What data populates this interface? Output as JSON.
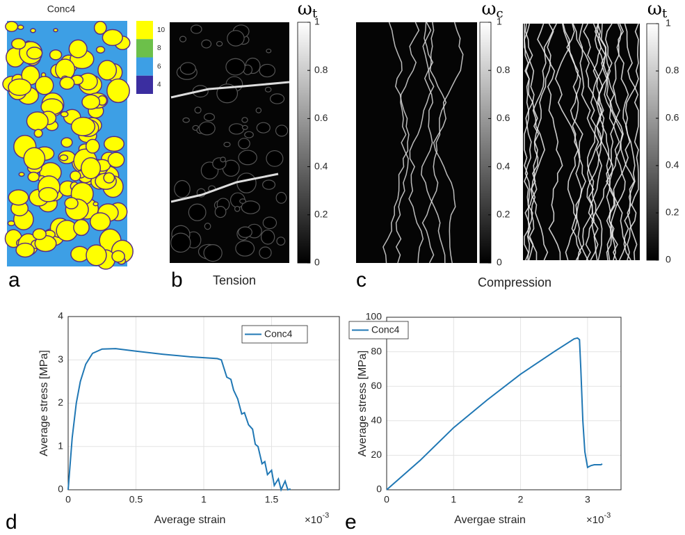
{
  "panels": {
    "a": {
      "letter": "a",
      "title": "Conc4"
    },
    "b": {
      "letter": "b",
      "caption": "Tension"
    },
    "c": {
      "letter": "c",
      "caption": "Compression"
    },
    "d": {
      "letter": "d"
    },
    "e": {
      "letter": "e"
    }
  },
  "colorbars": [
    {
      "lim": [
        3,
        11
      ],
      "levels": [
        10,
        8,
        6,
        4
      ],
      "colors": [
        "#ffff00",
        "#6cc04a",
        "#3d9fe5",
        "#3b2ea0"
      ]
    },
    {
      "symbol": "ω",
      "subscript": "t",
      "lim": [
        0,
        1
      ],
      "ticks": [
        0,
        0.2,
        0.4,
        0.6,
        0.8,
        1
      ]
    },
    {
      "symbol": "ω",
      "subscript": "c",
      "lim": [
        0,
        1
      ],
      "ticks": [
        0,
        0.2,
        0.4,
        0.6,
        0.8,
        1
      ]
    },
    {
      "symbol": "ω",
      "subscript": "t",
      "lim": [
        0,
        1
      ],
      "ticks": [
        0,
        0.2,
        0.4,
        0.6,
        0.8,
        1
      ]
    }
  ],
  "chart_data": [
    {
      "type": "line",
      "x_label": "Average strain",
      "y_label": "Average stress [MPa]",
      "x_multiplier": "×10",
      "x_exponent": "-3",
      "xlim": [
        0,
        2
      ],
      "xticks": [
        0,
        0.5,
        1,
        1.5
      ],
      "ylim": [
        0,
        4
      ],
      "yticks": [
        0,
        1,
        2,
        3,
        4
      ],
      "grid": true,
      "legend": "upper right",
      "x": [
        0,
        0.03,
        0.06,
        0.09,
        0.13,
        0.18,
        0.25,
        0.35,
        0.5,
        0.7,
        0.9,
        1.1,
        1.13,
        1.17,
        1.2,
        1.22,
        1.25,
        1.28,
        1.3,
        1.33,
        1.36,
        1.38,
        1.4,
        1.43,
        1.45,
        1.47,
        1.5,
        1.52,
        1.55,
        1.57,
        1.6,
        1.62,
        1.64
      ],
      "series": [
        {
          "name": "Conc4",
          "color": "#1f77b4",
          "values": [
            0,
            1.2,
            2.0,
            2.5,
            2.9,
            3.15,
            3.25,
            3.26,
            3.2,
            3.13,
            3.07,
            3.03,
            3.0,
            2.6,
            2.55,
            2.3,
            2.1,
            1.75,
            1.78,
            1.5,
            1.4,
            1.05,
            1.0,
            0.6,
            0.65,
            0.35,
            0.45,
            0.1,
            0.25,
            0,
            0.2,
            0,
            0.02
          ]
        }
      ]
    },
    {
      "type": "line",
      "x_label": "Avergae strain",
      "y_label": "Average stress [MPa]",
      "x_multiplier": "×10",
      "x_exponent": "-3",
      "xlim": [
        0,
        3.5
      ],
      "xticks": [
        0,
        1,
        2,
        3
      ],
      "ylim": [
        0,
        100
      ],
      "yticks": [
        0,
        20,
        40,
        60,
        80,
        100
      ],
      "grid": true,
      "legend": "upper left",
      "x": [
        0,
        0.5,
        1,
        1.5,
        2,
        2.5,
        2.8,
        2.85,
        2.88,
        2.9,
        2.93,
        2.96,
        3.0,
        3.05,
        3.1,
        3.2,
        3.22
      ],
      "series": [
        {
          "name": "Conc4",
          "color": "#1f77b4",
          "values": [
            0,
            17,
            36,
            52,
            67,
            80,
            87.5,
            88,
            87,
            70,
            40,
            22,
            13,
            14,
            14.5,
            14.5,
            15
          ]
        }
      ]
    }
  ]
}
